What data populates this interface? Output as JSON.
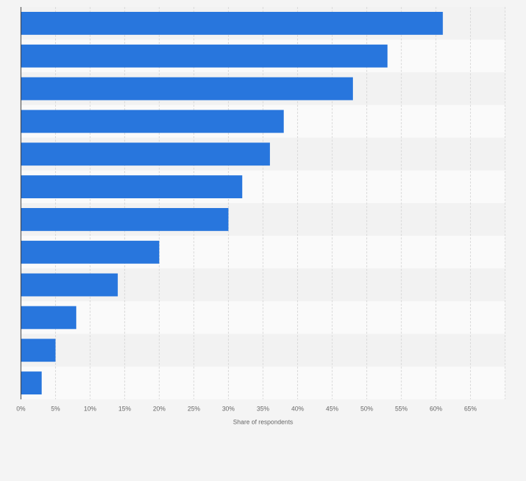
{
  "chart_data": {
    "type": "bar",
    "orientation": "horizontal",
    "x_label": "Share of respondents",
    "categories": [
      null,
      null,
      null,
      null,
      null,
      null,
      null,
      null,
      null,
      null,
      null,
      null
    ],
    "values": [
      61,
      53,
      48,
      38,
      36,
      32,
      30,
      20,
      14,
      8,
      5,
      3
    ],
    "color": "#2876dd",
    "xlim": [
      0,
      70
    ],
    "xticks": [
      {
        "value": 0,
        "label": "0%"
      },
      {
        "value": 5,
        "label": "5%"
      },
      {
        "value": 10,
        "label": "10%"
      },
      {
        "value": 15,
        "label": "15%"
      },
      {
        "value": 20,
        "label": "20%"
      },
      {
        "value": 25,
        "label": "25%"
      },
      {
        "value": 30,
        "label": "30%"
      },
      {
        "value": 35,
        "label": "35%"
      },
      {
        "value": 40,
        "label": "40%"
      },
      {
        "value": 45,
        "label": "45%"
      },
      {
        "value": 50,
        "label": "50%"
      },
      {
        "value": 55,
        "label": "55%"
      },
      {
        "value": 60,
        "label": "60%"
      },
      {
        "value": 65,
        "label": "65%"
      }
    ],
    "grid": true
  }
}
